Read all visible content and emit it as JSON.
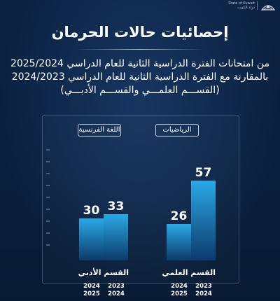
{
  "header": {
    "state_en": "State of Kuwait",
    "state_ar": "دولة الكويت"
  },
  "title": "إحصائيات حالات الحرمان",
  "subtitle_lines": [
    "من امتحانات الفترة الدراسية الثانية للعام الدراسي 2025/2024",
    "بالمقارنة مع الفترة الدراسية الثانية للعام الدراسي 2024/2023",
    "(القســـم العلمـــي والقســـم الأدبـــي)"
  ],
  "colors": {
    "background": "#0a1f3d",
    "bar_top": "#2aa9e6",
    "bar_bottom": "#0c3a6b"
  },
  "chart_data": {
    "type": "bar",
    "groups": [
      {
        "section": "القسم الأدبي",
        "subject": "اللغة الفرنسية",
        "bars": [
          {
            "year_top": "2024",
            "year_bottom": "2025",
            "value": 30
          },
          {
            "year_top": "2023",
            "year_bottom": "2024",
            "value": 33
          }
        ]
      },
      {
        "section": "القسم العلمي",
        "subject": "الرياضيات",
        "bars": [
          {
            "year_top": "2024",
            "year_bottom": "2025",
            "value": 26
          },
          {
            "year_top": "2023",
            "year_bottom": "2024",
            "value": 57
          }
        ]
      }
    ],
    "ylim": [
      0,
      70
    ],
    "grid": false,
    "legend": "none"
  }
}
